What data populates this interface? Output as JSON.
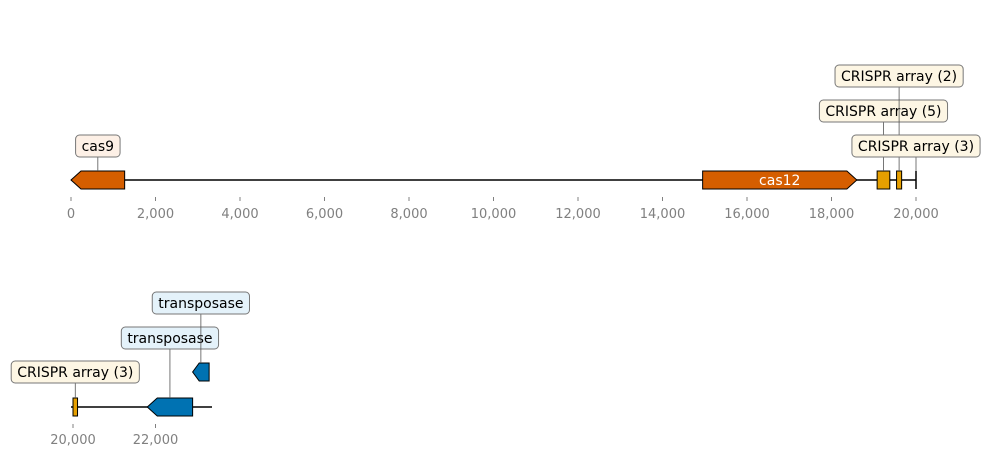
{
  "tracks": [
    {
      "id": "track-1",
      "axis": {
        "start": 0,
        "end": 20000
      },
      "ticks": [
        "0",
        "2,000",
        "4,000",
        "6,000",
        "8,000",
        "10,000",
        "12,000",
        "14,000",
        "16,000",
        "18,000",
        "20,000"
      ],
      "features": [
        {
          "id": "cas9",
          "start": 0,
          "end": 1270,
          "strand": -1,
          "color": "#d55e00",
          "label": "cas9",
          "label_color": "#fdf0e6",
          "label_level": 1
        },
        {
          "id": "cas12",
          "start": 14950,
          "end": 18600,
          "strand": 1,
          "color": "#d55e00",
          "inner_label": "cas12"
        },
        {
          "id": "crispr-a",
          "start": 19080,
          "end": 19380,
          "strand": 0,
          "color": "#e69f00",
          "label": "CRISPR array (5)",
          "label_color": "#fdf6e4",
          "label_level": 2
        },
        {
          "id": "crispr-b",
          "start": 19540,
          "end": 19660,
          "strand": 0,
          "color": "#e69f00",
          "label": "CRISPR array (2)",
          "label_color": "#fdf6e4",
          "label_level": 3
        },
        {
          "id": "crispr-c",
          "start": 20000,
          "end": 20000,
          "strand": 0,
          "color": "#e69f00",
          "label": "CRISPR array (3)",
          "label_color": "#fdf6e4",
          "label_level": 1
        }
      ]
    },
    {
      "id": "track-2",
      "axis": {
        "start": 20000,
        "end": 23300
      },
      "ticks": [
        "20,000",
        "22,000"
      ],
      "features": [
        {
          "id": "crispr-d",
          "start": 20000,
          "end": 20110,
          "strand": 0,
          "color": "#e69f00",
          "label": "CRISPR array (3)",
          "label_color": "#fdf6e4",
          "label_level": 1
        },
        {
          "id": "transposase-1",
          "start": 21800,
          "end": 22900,
          "strand": -1,
          "color": "#0072b2",
          "label": "transposase",
          "label_color": "#e4f2fa",
          "label_level": 2
        },
        {
          "id": "transposase-2",
          "start": 22900,
          "end": 23300,
          "strand": -1,
          "color": "#0072b2",
          "label": "transposase",
          "label_color": "#e4f2fa",
          "label_level": 3,
          "row": 1
        }
      ]
    }
  ]
}
